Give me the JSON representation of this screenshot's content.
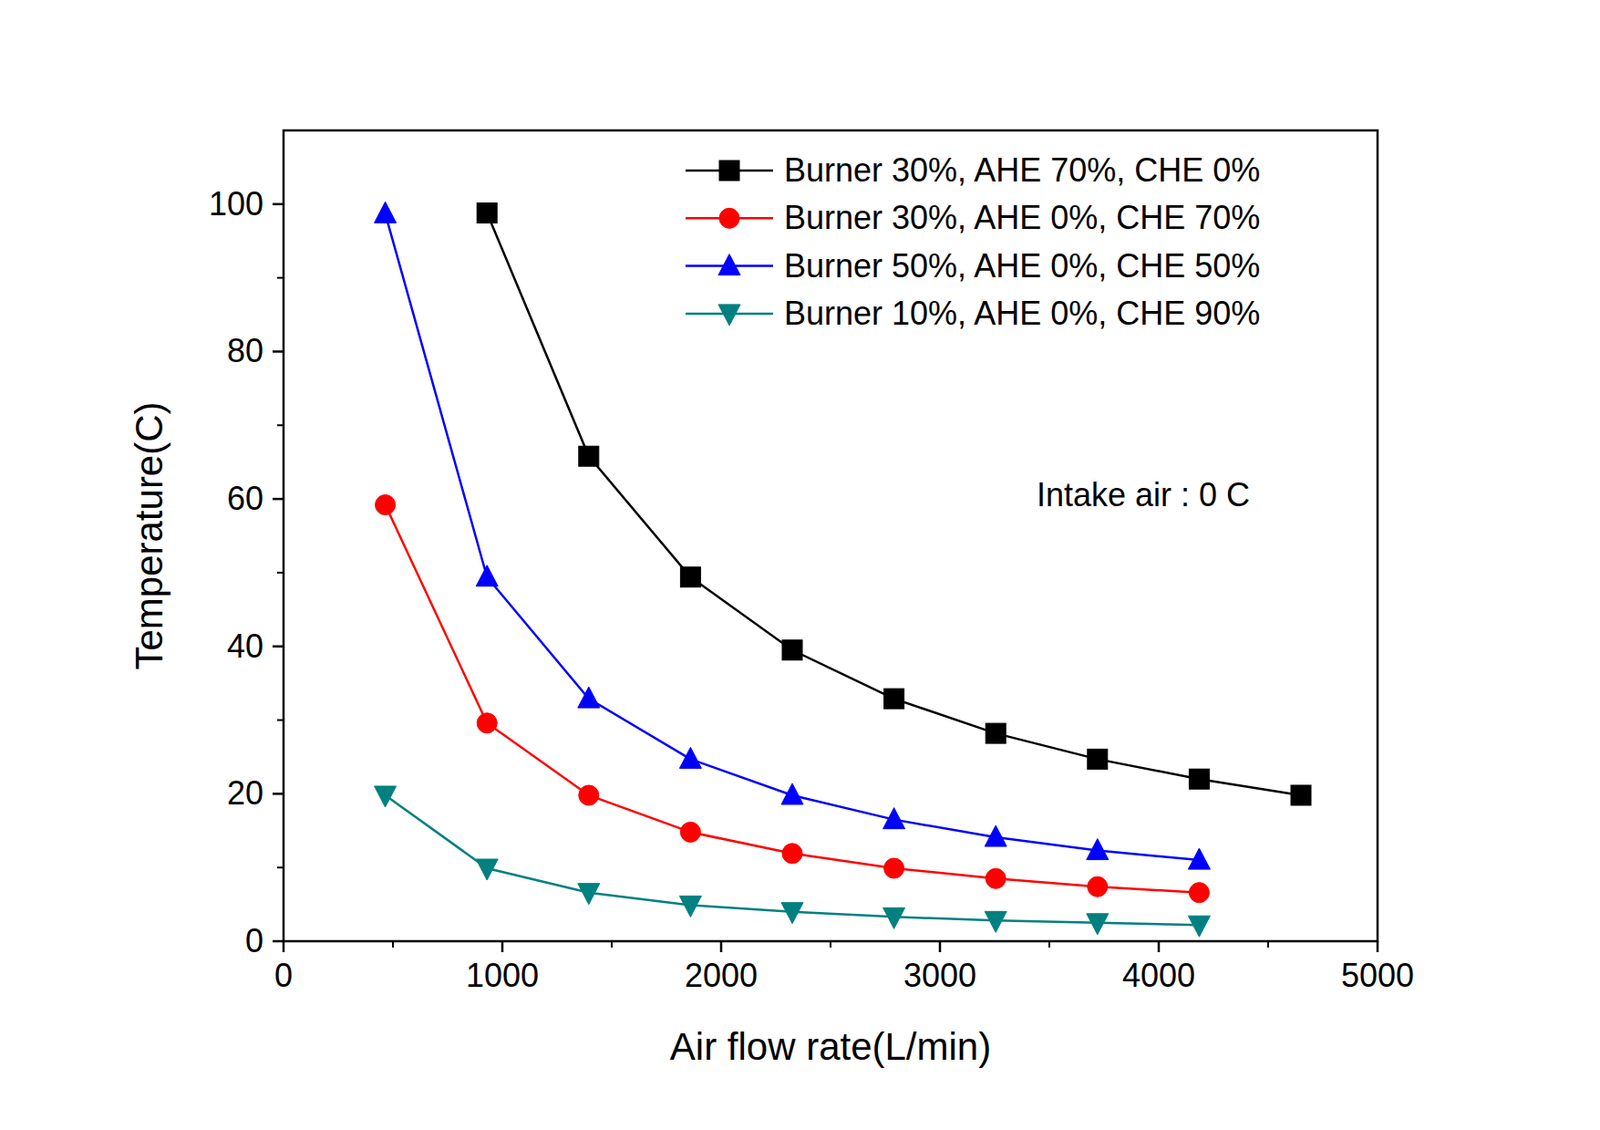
{
  "chart_data": {
    "type": "line",
    "x_label": "Air flow rate(L/min)",
    "y_label": "Temperature(C)",
    "annotation": "Intake air : 0 C",
    "xlim": [
      0,
      5000
    ],
    "xticks": [
      0,
      1000,
      2000,
      3000,
      4000,
      5000
    ],
    "ylim": [
      0,
      110
    ],
    "yticks": [
      0,
      20,
      40,
      60,
      80,
      100
    ],
    "grid": false,
    "legend": "upper-right",
    "series": [
      {
        "name": "Burner 30%, AHE 70%, CHE 0%",
        "color": "#000000",
        "marker": "square",
        "line_style": "solid",
        "x": [
          930,
          1395,
          1860,
          2325,
          2790,
          3255,
          3720,
          4185,
          4650
        ],
        "values": [
          98.8,
          65.8,
          49.4,
          39.5,
          32.9,
          28.2,
          24.7,
          22.0,
          19.8
        ]
      },
      {
        "name": "Burner 30%, AHE 0%, CHE 70%",
        "color": "#ff0000",
        "marker": "circle",
        "line_style": "solid",
        "x": [
          465,
          930,
          1395,
          1860,
          2325,
          2790,
          3255,
          3720,
          4185
        ],
        "values": [
          59.2,
          29.6,
          19.8,
          14.8,
          11.9,
          9.9,
          8.5,
          7.4,
          6.6
        ]
      },
      {
        "name": "Burner 50%, AHE 0%, CHE 50%",
        "color": "#0000ff",
        "marker": "triangle",
        "line_style": "solid",
        "x": [
          465,
          930,
          1395,
          1860,
          2325,
          2790,
          3255,
          3720,
          4185
        ],
        "values": [
          98.7,
          49.4,
          32.9,
          24.7,
          19.8,
          16.5,
          14.1,
          12.3,
          11.0
        ]
      },
      {
        "name": "Burner 10%, AHE 0%, CHE 90%",
        "color": "#008080",
        "marker": "triangle-down",
        "line_style": "solid",
        "x": [
          465,
          930,
          1395,
          1860,
          2325,
          2790,
          3255,
          3720,
          4185
        ],
        "values": [
          19.8,
          9.9,
          6.6,
          4.9,
          4.0,
          3.3,
          2.8,
          2.5,
          2.2
        ]
      }
    ]
  }
}
